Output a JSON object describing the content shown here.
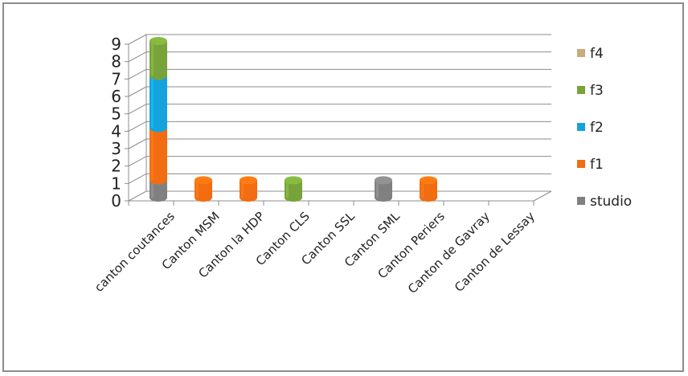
{
  "chart_data": {
    "type": "bar",
    "stacked": true,
    "three_d": true,
    "categories": [
      "canton coutances",
      "Canton MSM",
      "Canton la HDP",
      "Canton CLS",
      "Canton SSL",
      "Canton SML",
      "Canton Periers",
      "Canton de Gavray",
      "Canton de Lessay"
    ],
    "series": [
      {
        "name": "studio",
        "color": "#808080",
        "values": [
          1,
          0,
          0,
          0,
          0,
          1,
          0,
          0,
          0
        ]
      },
      {
        "name": "f1",
        "color": "#f26c12",
        "values": [
          3,
          1,
          1,
          0,
          0,
          0,
          1,
          0,
          0
        ]
      },
      {
        "name": "f2",
        "color": "#14a3dc",
        "values": [
          3,
          0,
          0,
          0,
          0,
          0,
          0,
          0,
          0
        ]
      },
      {
        "name": "f3",
        "color": "#77a33a",
        "values": [
          2,
          0,
          0,
          1,
          0,
          0,
          0,
          0,
          0
        ]
      },
      {
        "name": "f4",
        "color": "#c9aa7c",
        "values": [
          0,
          0,
          0,
          0,
          0,
          0,
          0,
          0,
          0
        ]
      }
    ],
    "ylim": [
      0,
      9
    ],
    "yticks": [
      "0",
      "1",
      "2",
      "3",
      "4",
      "5",
      "6",
      "7",
      "8",
      "9"
    ],
    "grid": true,
    "legend_position": "right",
    "legend_order": [
      "f4",
      "f3",
      "f2",
      "f1",
      "studio"
    ]
  }
}
